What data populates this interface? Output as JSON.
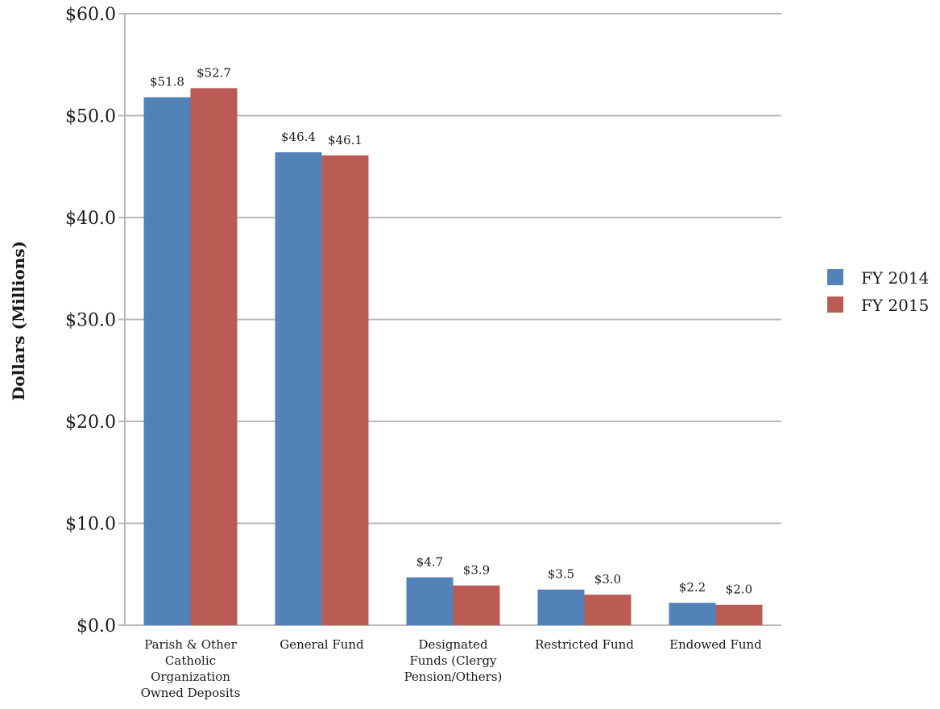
{
  "chart_data": {
    "type": "bar",
    "title": "",
    "xlabel": "",
    "ylabel": "Dollars (Millions)",
    "ylim": [
      0,
      60
    ],
    "yticks": [
      0,
      10,
      20,
      30,
      40,
      50,
      60
    ],
    "ytick_labels": [
      "$0.0",
      "$10.0",
      "$20.0",
      "$30.0",
      "$40.0",
      "$50.0",
      "$60.0"
    ],
    "grid": true,
    "legend_position": "right",
    "categories": [
      [
        "Parish & Other",
        "Catholic",
        "Organization",
        "Owned Deposits"
      ],
      [
        "General Fund"
      ],
      [
        "Designated",
        "Funds (Clergy",
        "Pension/Others)"
      ],
      [
        "Restricted Fund"
      ],
      [
        "Endowed Fund"
      ]
    ],
    "series": [
      {
        "name": "FY 2014",
        "color": "#5182b8",
        "values": [
          51.8,
          46.4,
          4.7,
          3.5,
          2.2
        ],
        "labels": [
          "$51.8",
          "$46.4",
          "$4.7",
          "$3.5",
          "$2.2"
        ]
      },
      {
        "name": "FY 2015",
        "color": "#bb5c54",
        "values": [
          52.7,
          46.1,
          3.9,
          3.0,
          2.0
        ],
        "labels": [
          "$52.7",
          "$46.1",
          "$3.9",
          "$3.0",
          "$2.0"
        ]
      }
    ]
  }
}
